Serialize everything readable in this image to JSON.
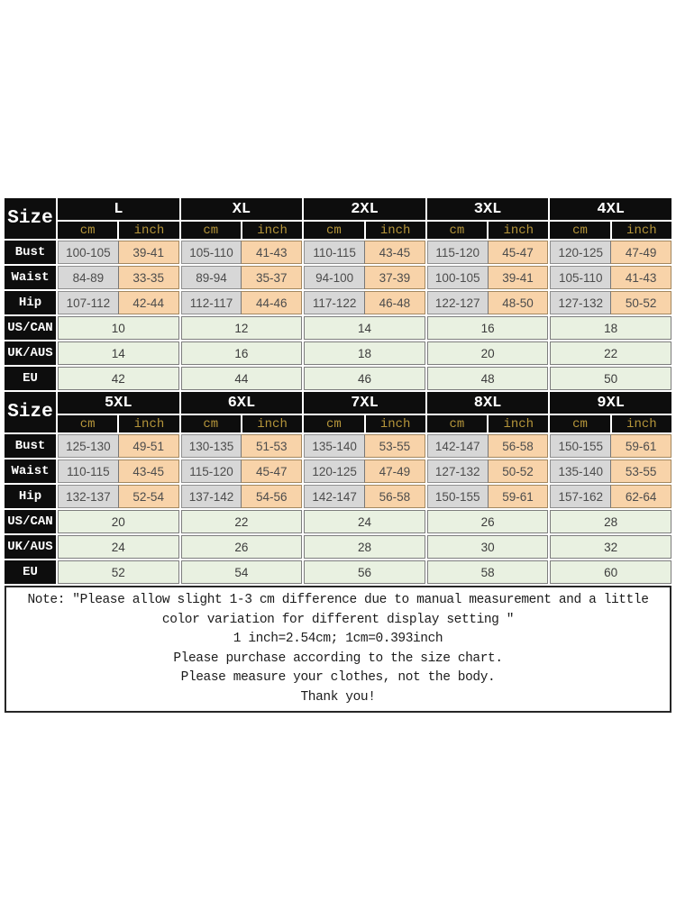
{
  "labels": {
    "size": "Size",
    "units": [
      "cm",
      "inch"
    ]
  },
  "colors": {
    "header_bg": "#0d0d0d",
    "header_text": "#ffffff",
    "unit_text": "#b5953a",
    "cm_cell_bg": "#d7d7d7",
    "inch_cell_bg": "#f8d3a9",
    "region_cell_bg": "#e9f1e1",
    "value_text": "#4c4c4c",
    "page_bg": "#ffffff"
  },
  "chart_data": {
    "type": "table",
    "title": "Garment size conversion chart",
    "tables": [
      {
        "sizes": [
          "L",
          "XL",
          "2XL",
          "3XL",
          "4XL"
        ],
        "rows": [
          {
            "label": "Bust",
            "kind": "measure",
            "cm": [
              "100-105",
              "105-110",
              "110-115",
              "115-120",
              "120-125"
            ],
            "inch": [
              "39-41",
              "41-43",
              "43-45",
              "45-47",
              "47-49"
            ]
          },
          {
            "label": "Waist",
            "kind": "measure",
            "cm": [
              "84-89",
              "89-94",
              "94-100",
              "100-105",
              "105-110"
            ],
            "inch": [
              "33-35",
              "35-37",
              "37-39",
              "39-41",
              "41-43"
            ]
          },
          {
            "label": "Hip",
            "kind": "measure",
            "cm": [
              "107-112",
              "112-117",
              "117-122",
              "122-127",
              "127-132"
            ],
            "inch": [
              "42-44",
              "44-46",
              "46-48",
              "48-50",
              "50-52"
            ]
          },
          {
            "label": "US/CAN",
            "kind": "single",
            "values": [
              "10",
              "12",
              "14",
              "16",
              "18"
            ]
          },
          {
            "label": "UK/AUS",
            "kind": "single",
            "values": [
              "14",
              "16",
              "18",
              "20",
              "22"
            ]
          },
          {
            "label": "EU",
            "kind": "single",
            "values": [
              "42",
              "44",
              "46",
              "48",
              "50"
            ]
          }
        ]
      },
      {
        "sizes": [
          "5XL",
          "6XL",
          "7XL",
          "8XL",
          "9XL"
        ],
        "rows": [
          {
            "label": "Bust",
            "kind": "measure",
            "cm": [
              "125-130",
              "130-135",
              "135-140",
              "142-147",
              "150-155"
            ],
            "inch": [
              "49-51",
              "51-53",
              "53-55",
              "56-58",
              "59-61"
            ]
          },
          {
            "label": "Waist",
            "kind": "measure",
            "cm": [
              "110-115",
              "115-120",
              "120-125",
              "127-132",
              "135-140"
            ],
            "inch": [
              "43-45",
              "45-47",
              "47-49",
              "50-52",
              "53-55"
            ]
          },
          {
            "label": "Hip",
            "kind": "measure",
            "cm": [
              "132-137",
              "137-142",
              "142-147",
              "150-155",
              "157-162"
            ],
            "inch": [
              "52-54",
              "54-56",
              "56-58",
              "59-61",
              "62-64"
            ]
          },
          {
            "label": "US/CAN",
            "kind": "single",
            "values": [
              "20",
              "22",
              "24",
              "26",
              "28"
            ]
          },
          {
            "label": "UK/AUS",
            "kind": "single",
            "values": [
              "24",
              "26",
              "28",
              "30",
              "32"
            ]
          },
          {
            "label": "EU",
            "kind": "single",
            "values": [
              "52",
              "54",
              "56",
              "58",
              "60"
            ]
          }
        ]
      }
    ]
  },
  "note": {
    "lines": [
      "Note:  ″Please allow slight 1-3 cm difference due to manual measurement and a little",
      "color variation for different display setting ″",
      "1 inch=2.54cm; 1cm=0.393inch",
      "Please purchase according to the size chart.",
      "Please measure your clothes, not the body.",
      "Thank you!"
    ]
  }
}
